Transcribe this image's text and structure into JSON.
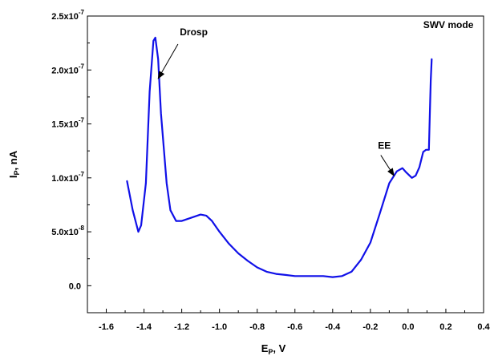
{
  "chart_data": {
    "type": "line",
    "xlabel_main": "E",
    "xlabel_sub": "P",
    "xlabel_rest": ", V",
    "ylabel_main": "I",
    "ylabel_sub": "P",
    "ylabel_rest": ", nA",
    "xlim": [
      -1.7,
      0.4
    ],
    "ylim": [
      -2.5e-08,
      2.5e-07
    ],
    "x_ticks": [
      {
        "value": -1.6,
        "label": "-1.6"
      },
      {
        "value": -1.4,
        "label": "-1.4"
      },
      {
        "value": -1.2,
        "label": "-1.2"
      },
      {
        "value": -1.0,
        "label": "-1.0"
      },
      {
        "value": -0.8,
        "label": "-0.8"
      },
      {
        "value": -0.6,
        "label": "-0.6"
      },
      {
        "value": -0.4,
        "label": "-0.4"
      },
      {
        "value": -0.2,
        "label": "-0.2"
      },
      {
        "value": 0.0,
        "label": "0.0"
      },
      {
        "value": 0.2,
        "label": "0.2"
      },
      {
        "value": 0.4,
        "label": "0.4"
      }
    ],
    "y_ticks": [
      {
        "value": 0.0,
        "base": "0.0",
        "exp": ""
      },
      {
        "value": 5e-08,
        "base": "5.0x10",
        "exp": "-8"
      },
      {
        "value": 1e-07,
        "base": "1.0x10",
        "exp": "-7"
      },
      {
        "value": 1.5e-07,
        "base": "1.5x10",
        "exp": "-7"
      },
      {
        "value": 2e-07,
        "base": "2.0x10",
        "exp": "-7"
      },
      {
        "value": 2.5e-07,
        "base": "2.5x10",
        "exp": "-7"
      }
    ],
    "series": [
      {
        "color": "#1010e8",
        "x": [
          -1.49,
          -1.46,
          -1.43,
          -1.415,
          -1.39,
          -1.37,
          -1.35,
          -1.34,
          -1.325,
          -1.31,
          -1.28,
          -1.26,
          -1.23,
          -1.2,
          -1.15,
          -1.1,
          -1.07,
          -1.04,
          -1.0,
          -0.95,
          -0.9,
          -0.85,
          -0.8,
          -0.75,
          -0.7,
          -0.65,
          -0.6,
          -0.55,
          -0.5,
          -0.45,
          -0.4,
          -0.35,
          -0.3,
          -0.25,
          -0.2,
          -0.15,
          -0.1,
          -0.06,
          -0.03,
          -0.01,
          0.02,
          0.04,
          0.06,
          0.08,
          0.095,
          0.11,
          0.115,
          0.12,
          0.125
        ],
        "y": [
          9.7e-08,
          7e-08,
          5e-08,
          5.6e-08,
          9.5e-08,
          1.8e-07,
          2.27e-07,
          2.3e-07,
          2.1e-07,
          1.6e-07,
          9.5e-08,
          7e-08,
          6e-08,
          6e-08,
          6.3e-08,
          6.6e-08,
          6.5e-08,
          6e-08,
          5e-08,
          3.9e-08,
          3e-08,
          2.3e-08,
          1.7e-08,
          1.3e-08,
          1.1e-08,
          1e-08,
          9e-09,
          9e-09,
          9e-09,
          9e-09,
          8e-09,
          9e-09,
          1.3e-08,
          2.4e-08,
          4e-08,
          6.7e-08,
          9.5e-08,
          1.06e-07,
          1.09e-07,
          1.05e-07,
          1e-07,
          1.02e-07,
          1.1e-07,
          1.24e-07,
          1.26e-07,
          1.26e-07,
          1.6e-07,
          1.9e-07,
          2.1e-07
        ]
      }
    ],
    "annotations": [
      {
        "text": "Drosp",
        "x": -1.21,
        "y": 2.32e-07,
        "arrow_from": [
          -1.22,
          2.24e-07
        ],
        "arrow_to": [
          -1.325,
          1.92e-07
        ]
      },
      {
        "text": "EE",
        "x": -0.16,
        "y": 1.27e-07,
        "arrow_from": [
          -0.145,
          1.21e-07
        ],
        "arrow_to": [
          -0.075,
          1.02e-07
        ]
      },
      {
        "text": "SWV mode",
        "x": 0.08,
        "y": 2.39e-07
      }
    ]
  }
}
